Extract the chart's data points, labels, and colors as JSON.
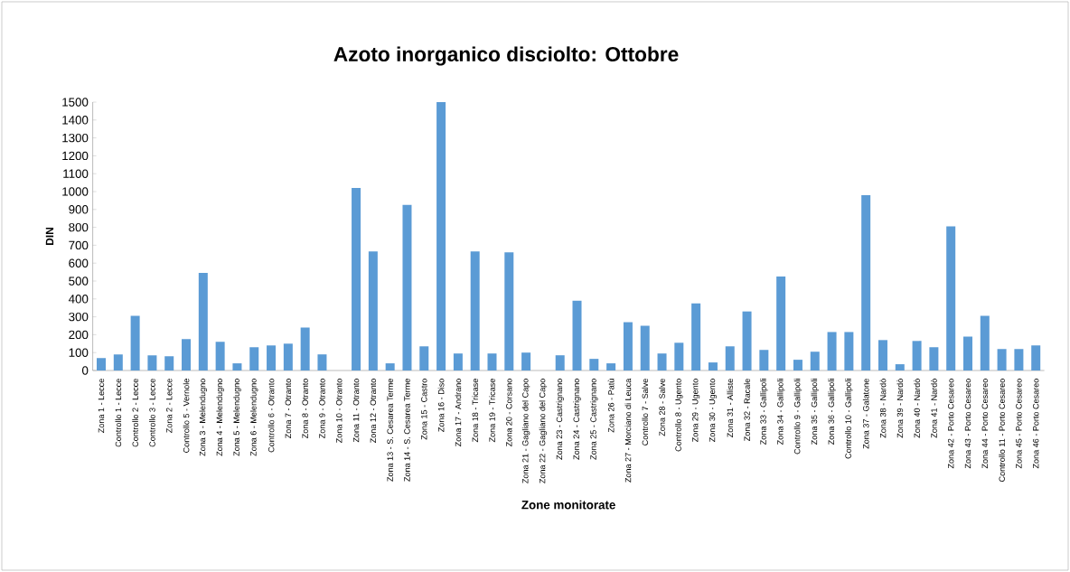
{
  "chart_data": {
    "type": "bar",
    "title": "Azoto inorganico disciolto: Ottobre",
    "xlabel": "Zone monitorate",
    "ylabel": "DIN",
    "categories": [
      "Zona 1 - Lecce",
      "Controllo 1 - Lecce",
      "Controllo 2 - Lecce",
      "Controllo 3 - Lecce",
      "Zona 2 - Lecce",
      "Controllo 5 - Vernole",
      "Zona 3 - Melendugno",
      "Zona 4 - Melendugno",
      "Zona 5 - Melendugno",
      "Zona 6 - Melendugno",
      "Controllo 6 - Otranto",
      "Zona 7 - Otranto",
      "Zona 8 - Otranto",
      "Zona 9 - Otranto",
      "Zona 10 - Otranto",
      "Zona 11 - Otranto",
      "Zona 12 - Otranto",
      "Zona 13 - S. Cesarea Terme",
      "Zona 14 - S. Cesarea Terme",
      "Zona 15 - Castro",
      "Zona 16 - Diso",
      "Zona 17 - Andrano",
      "Zona 18 - Tricase",
      "Zona 19 - Tricase",
      "Zona 20 - Corsano",
      "Zona 21 - Gagliano del Capo",
      "Zona 22 - Gagliano del Capo",
      "Zona 23 - Castrignano",
      "Zona 24 - Castrignano",
      "Zona 25 - Castrignano",
      "Zona 26 - Patù",
      "Zona 27 - Morciano di Leuca",
      "Controllo 7 - Salve",
      "Zona 28 - Salve",
      "Controllo 8 - Ugento",
      "Zona 29 - Ugento",
      "Zona 30 - Ugento",
      "Zona 31 - Alliste",
      "Zona 32 - Racale",
      "Zona 33 - Gallipoli",
      "Zona 34 - Gallipoli",
      "Controllo 9 - Gallipoli",
      "Zona 35 - Gallipoli",
      "Zona 36 - Gallipoli",
      "Controllo 10 - Gallipoli",
      "Zona 37 - Galatone",
      "Zona 38 - Nardò",
      "Zona 39 - Nardò",
      "Zona 40 - Nardò",
      "Zona 41 - Nardò",
      "Zona 42 - Porto Cesareo",
      "Zona 43 - Porto Cesareo",
      "Zona 44 - Porto Cesareo",
      "Controllo 11 - Porto Cesareo",
      "Zona 45 - Porto Cesareo",
      "Zona 46 - Porto Cesareo"
    ],
    "values": [
      70,
      90,
      305,
      85,
      80,
      175,
      545,
      160,
      40,
      130,
      140,
      150,
      240,
      90,
      0,
      1020,
      665,
      40,
      925,
      135,
      1500,
      95,
      665,
      95,
      660,
      100,
      0,
      85,
      390,
      65,
      40,
      270,
      250,
      95,
      155,
      375,
      45,
      135,
      330,
      115,
      525,
      60,
      105,
      215,
      215,
      980,
      170,
      35,
      165,
      130,
      805,
      190,
      305,
      120,
      120,
      140
    ],
    "color": "#5b9bd5",
    "ylim": [
      0,
      1500
    ],
    "yticks": [
      0,
      100,
      200,
      300,
      400,
      500,
      600,
      700,
      800,
      900,
      1000,
      1100,
      1200,
      1300,
      1400,
      1500
    ]
  }
}
